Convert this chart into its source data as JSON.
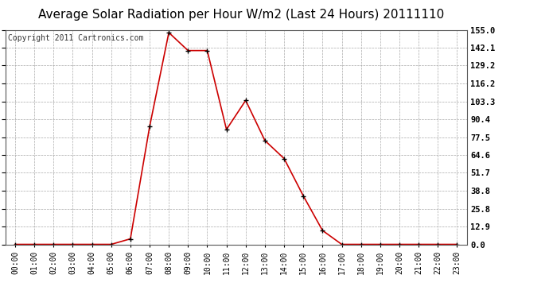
{
  "title": "Average Solar Radiation per Hour W/m2 (Last 24 Hours) 20111110",
  "copyright": "Copyright 2011 Cartronics.com",
  "hours": [
    0,
    1,
    2,
    3,
    4,
    5,
    6,
    7,
    8,
    9,
    10,
    11,
    12,
    13,
    14,
    15,
    16,
    17,
    18,
    19,
    20,
    21,
    22,
    23
  ],
  "values": [
    0,
    0,
    0,
    0,
    0,
    0,
    4,
    85,
    153,
    140,
    140,
    83,
    104,
    75,
    62,
    35,
    10,
    0,
    0,
    0,
    0,
    0,
    0,
    0
  ],
  "line_color": "#cc0000",
  "marker": "+",
  "marker_color": "#000000",
  "bg_color": "#ffffff",
  "grid_color": "#aaaaaa",
  "ylim": [
    0,
    155.0
  ],
  "yticks": [
    0.0,
    12.9,
    25.8,
    38.8,
    51.7,
    64.6,
    77.5,
    90.4,
    103.3,
    116.2,
    129.2,
    142.1,
    155.0
  ],
  "title_fontsize": 11,
  "copyright_fontsize": 7,
  "tick_fontsize": 7,
  "ytick_fontsize": 7.5
}
